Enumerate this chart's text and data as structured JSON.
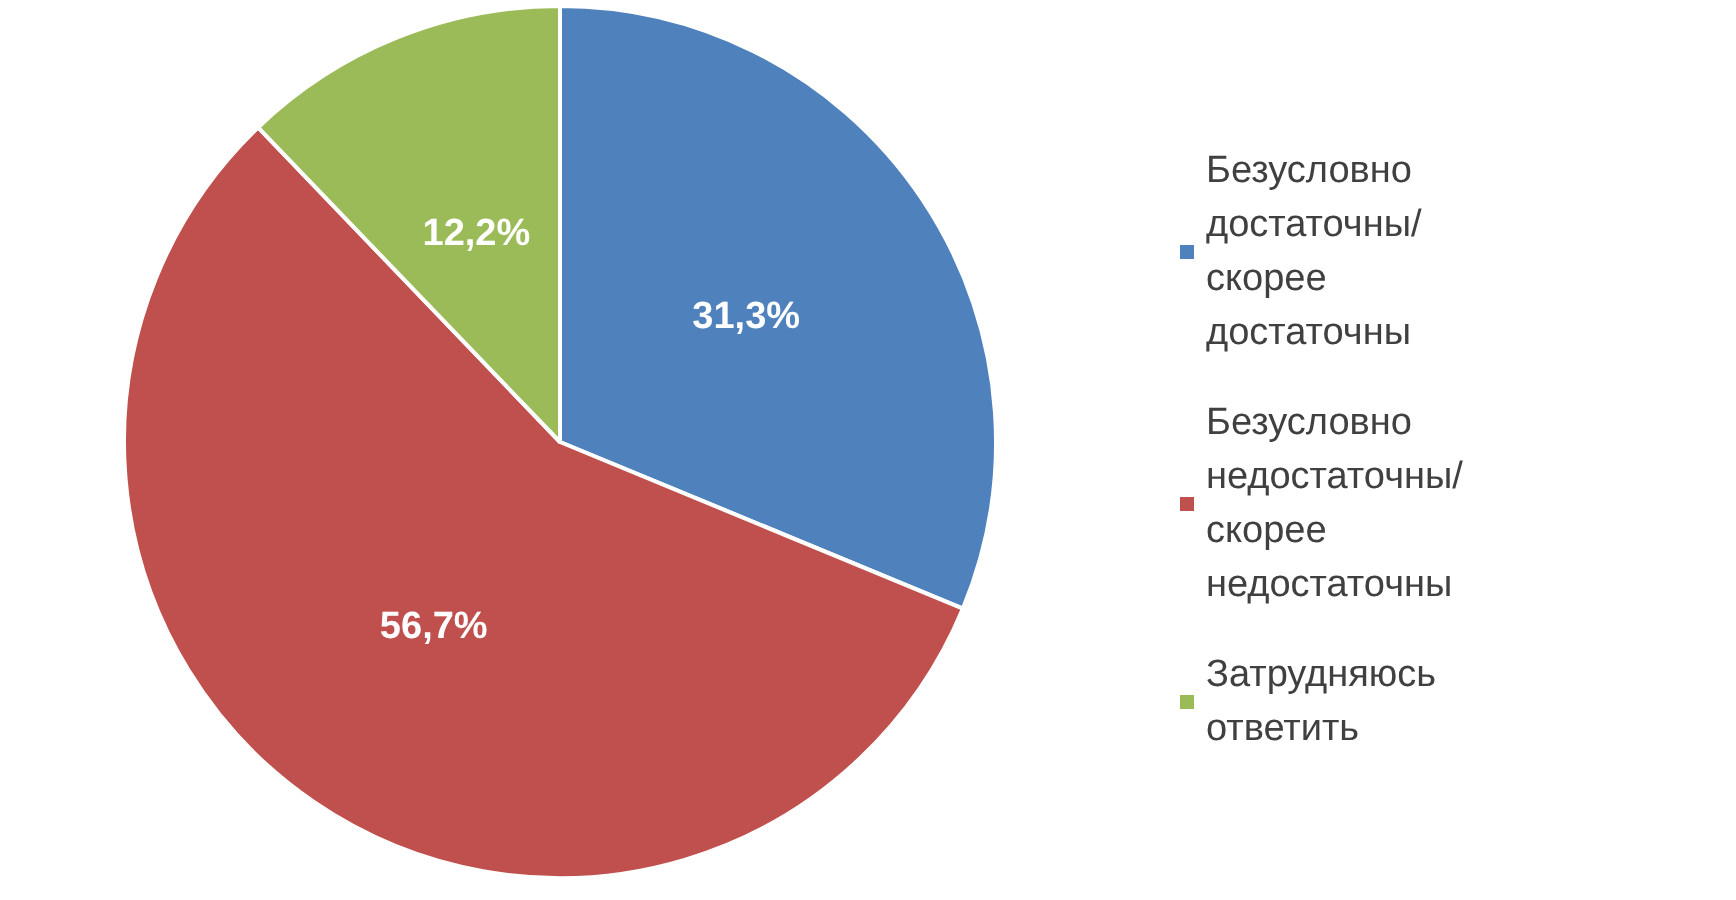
{
  "chart_data": {
    "type": "pie",
    "categories": [
      "Безусловно достаточны/ скорее достаточны",
      "Безусловно недостаточны/ скорее недостаточны",
      "Затрудняюсь ответить"
    ],
    "values": [
      31.3,
      56.7,
      12.2
    ],
    "colors": [
      "#4f81bd",
      "#c0504d",
      "#9bbb59"
    ],
    "value_labels": [
      "31,3%",
      "56,7%",
      "12,2%"
    ],
    "legend": "right"
  }
}
